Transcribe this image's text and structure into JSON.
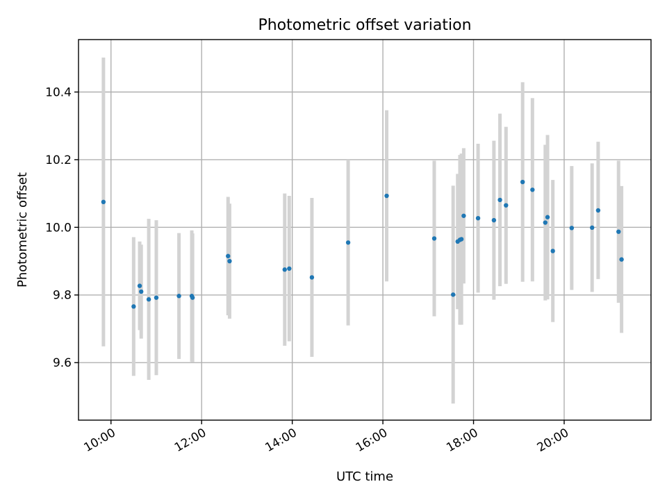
{
  "chart_data": {
    "type": "scatter",
    "title": "Photometric offset variation",
    "xlabel": "UTC time",
    "ylabel": "Photometric offset",
    "xlim": [
      "09:17",
      "21:55"
    ],
    "ylim": [
      9.43,
      10.555
    ],
    "xticks": [
      "10:00",
      "12:00",
      "14:00",
      "16:00",
      "18:00",
      "20:00"
    ],
    "yticks": [
      "9.6",
      "9.8",
      "10.0",
      "10.2",
      "10.4"
    ],
    "grid": true,
    "marker_color": "#1f77b4",
    "errorbar_color": "#d3d3d3",
    "points": [
      {
        "x": "09:50",
        "y": 10.075,
        "err": 0.427
      },
      {
        "x": "10:30",
        "y": 9.766,
        "err": 0.205
      },
      {
        "x": "10:38",
        "y": 9.827,
        "err": 0.131
      },
      {
        "x": "10:40",
        "y": 9.81,
        "err": 0.139
      },
      {
        "x": "10:50",
        "y": 9.787,
        "err": 0.238
      },
      {
        "x": "11:00",
        "y": 9.792,
        "err": 0.229
      },
      {
        "x": "11:30",
        "y": 9.797,
        "err": 0.186
      },
      {
        "x": "11:47",
        "y": 9.797,
        "err": 0.194
      },
      {
        "x": "11:48",
        "y": 9.792,
        "err": 0.19
      },
      {
        "x": "12:35",
        "y": 9.915,
        "err": 0.175
      },
      {
        "x": "12:37",
        "y": 9.9,
        "err": 0.17
      },
      {
        "x": "13:50",
        "y": 9.875,
        "err": 0.225
      },
      {
        "x": "13:56",
        "y": 9.878,
        "err": 0.215
      },
      {
        "x": "14:26",
        "y": 9.852,
        "err": 0.235
      },
      {
        "x": "15:14",
        "y": 9.955,
        "err": 0.245
      },
      {
        "x": "16:05",
        "y": 10.093,
        "err": 0.253
      },
      {
        "x": "17:08",
        "y": 9.967,
        "err": 0.23
      },
      {
        "x": "17:33",
        "y": 9.801,
        "err": 0.322
      },
      {
        "x": "17:39",
        "y": 9.958,
        "err": 0.2
      },
      {
        "x": "17:42",
        "y": 9.963,
        "err": 0.251
      },
      {
        "x": "17:44",
        "y": 9.965,
        "err": 0.253
      },
      {
        "x": "17:47",
        "y": 10.034,
        "err": 0.2
      },
      {
        "x": "18:06",
        "y": 10.027,
        "err": 0.22
      },
      {
        "x": "18:27",
        "y": 10.021,
        "err": 0.235
      },
      {
        "x": "18:35",
        "y": 10.081,
        "err": 0.255
      },
      {
        "x": "18:43",
        "y": 10.065,
        "err": 0.232
      },
      {
        "x": "19:05",
        "y": 10.134,
        "err": 0.295
      },
      {
        "x": "19:18",
        "y": 10.111,
        "err": 0.271
      },
      {
        "x": "19:35",
        "y": 10.014,
        "err": 0.23
      },
      {
        "x": "19:38",
        "y": 10.03,
        "err": 0.243
      },
      {
        "x": "19:45",
        "y": 9.93,
        "err": 0.21
      },
      {
        "x": "20:10",
        "y": 9.998,
        "err": 0.183
      },
      {
        "x": "20:37",
        "y": 9.999,
        "err": 0.19
      },
      {
        "x": "20:45",
        "y": 10.05,
        "err": 0.203
      },
      {
        "x": "21:12",
        "y": 9.987,
        "err": 0.21
      },
      {
        "x": "21:16",
        "y": 9.905,
        "err": 0.217
      }
    ]
  }
}
